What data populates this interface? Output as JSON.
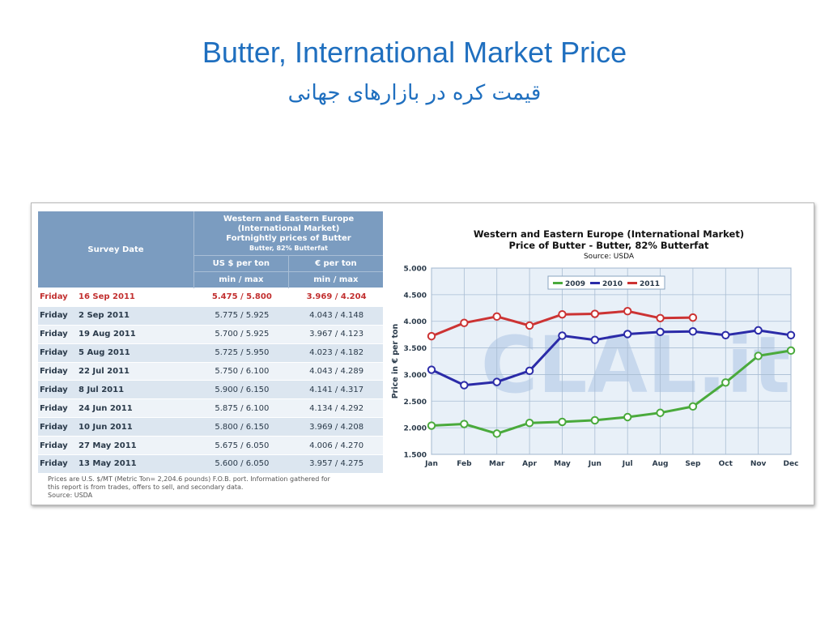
{
  "slide": {
    "title": "Butter, International Market Price",
    "subtitle": "قیمت کره در بازارهای جهانی"
  },
  "table": {
    "header_survey": "Survey Date",
    "header_desc_1": "Western and Eastern Europe",
    "header_desc_2": "(International Market)",
    "header_desc_3": "Fortnightly prices of Butter",
    "header_desc_4": "Butter, 82% Butterfat",
    "header_usd": "US $ per ton",
    "header_eur": "€ per ton",
    "header_minmax_usd": "min / max",
    "header_minmax_eur": "min / max",
    "rows": [
      {
        "day": "Friday",
        "date": "16 Sep 2011",
        "usd": "5.475 / 5.800",
        "eur": "3.969 / 4.204"
      },
      {
        "day": "Friday",
        "date": "2 Sep 2011",
        "usd": "5.775 / 5.925",
        "eur": "4.043 / 4.148"
      },
      {
        "day": "Friday",
        "date": "19 Aug 2011",
        "usd": "5.700 / 5.925",
        "eur": "3.967 / 4.123"
      },
      {
        "day": "Friday",
        "date": "5 Aug 2011",
        "usd": "5.725 / 5.950",
        "eur": "4.023 / 4.182"
      },
      {
        "day": "Friday",
        "date": "22 Jul 2011",
        "usd": "5.750 / 6.100",
        "eur": "4.043 / 4.289"
      },
      {
        "day": "Friday",
        "date": "8 Jul 2011",
        "usd": "5.900 / 6.150",
        "eur": "4.141 / 4.317"
      },
      {
        "day": "Friday",
        "date": "24 Jun 2011",
        "usd": "5.875 / 6.100",
        "eur": "4.134 / 4.292"
      },
      {
        "day": "Friday",
        "date": "10 Jun 2011",
        "usd": "5.800 / 6.150",
        "eur": "3.969 / 4.208"
      },
      {
        "day": "Friday",
        "date": "27 May 2011",
        "usd": "5.675 / 6.050",
        "eur": "4.006 / 4.270"
      },
      {
        "day": "Friday",
        "date": "13 May 2011",
        "usd": "5.600 / 6.050",
        "eur": "3.957 / 4.275"
      }
    ],
    "note_1": "Prices are U.S. $/MT (Metric Ton= 2,204.6 pounds) F.O.B. port. Information gathered for",
    "note_2": "this report is from trades, offers to sell, and secondary data.",
    "note_3": "Source: USDA"
  },
  "chart_data": {
    "type": "line",
    "title": "Western and Eastern Europe (International Market)",
    "subtitle": "Price of Butter - Butter, 82% Butterfat",
    "source": "Source: USDA",
    "ylabel": "Price in € per ton",
    "xlabel": "",
    "ylim": [
      1.5,
      5.0
    ],
    "yticks": [
      "1.500",
      "2.000",
      "2.500",
      "3.000",
      "3.500",
      "4.000",
      "4.500",
      "5.000"
    ],
    "categories": [
      "Jan",
      "Feb",
      "Mar",
      "Apr",
      "May",
      "Jun",
      "Jul",
      "Aug",
      "Sep",
      "Oct",
      "Nov",
      "Dec"
    ],
    "grid": true,
    "legend_position": "top-center",
    "watermark": "CLAL.it",
    "series": [
      {
        "name": "2009",
        "color": "#4aaa3c",
        "values": [
          2.04,
          2.07,
          1.89,
          2.09,
          2.11,
          2.14,
          2.2,
          2.28,
          2.4,
          2.85,
          3.35,
          3.45
        ]
      },
      {
        "name": "2010",
        "color": "#2b2ba8",
        "values": [
          3.09,
          2.8,
          2.86,
          3.07,
          3.73,
          3.65,
          3.76,
          3.8,
          3.81,
          3.74,
          3.83,
          3.74
        ]
      },
      {
        "name": "2011",
        "color": "#cc3333",
        "values": [
          3.72,
          3.97,
          4.09,
          3.92,
          4.13,
          4.14,
          4.19,
          4.06,
          4.07,
          null,
          null,
          null
        ]
      }
    ]
  }
}
